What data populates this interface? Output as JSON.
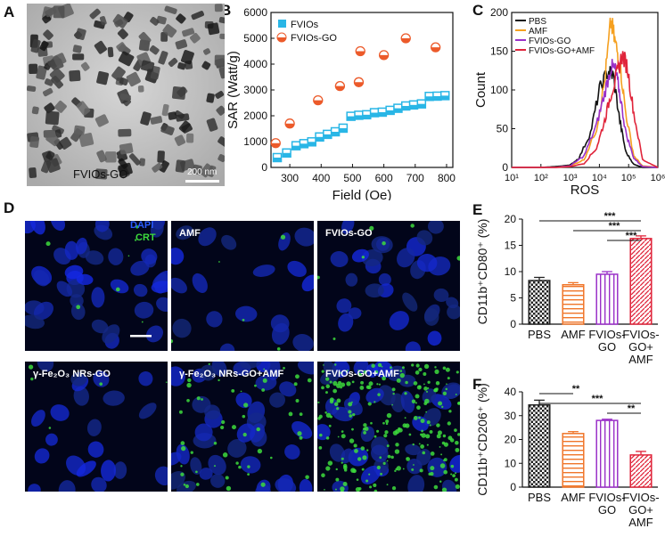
{
  "panels": {
    "A": {
      "letter": "A",
      "caption": "FVIOs-GO",
      "scale_bar": "200 nm"
    },
    "B": {
      "letter": "B"
    },
    "C": {
      "letter": "C"
    },
    "D": {
      "letter": "D",
      "legend": {
        "dapi": "DAPI",
        "crt": "CRT",
        "dapi_color": "#2a5cff",
        "crt_color": "#3ddc3d"
      },
      "cells": [
        {
          "label": "",
          "crt": 0.03,
          "density": 1.0
        },
        {
          "label": "AMF",
          "crt": 0.02,
          "density": 0.45
        },
        {
          "label": "FVIOs-GO",
          "crt": 0.03,
          "density": 0.75
        },
        {
          "label": "γ-Fe₂O₃ NRs-GO",
          "crt": 0.02,
          "density": 0.55
        },
        {
          "label": "γ-Fe₂O₃ NRs-GO+AMF",
          "crt": 0.2,
          "density": 1.0
        },
        {
          "label": "FVIOs-GO+AMF",
          "crt": 0.9,
          "density": 1.0
        }
      ]
    },
    "E": {
      "letter": "E"
    },
    "F": {
      "letter": "F"
    }
  },
  "chart_data": [
    {
      "panel": "B",
      "type": "scatter",
      "xlabel": "Field (Oe)",
      "ylabel": "SAR (Watt/g)",
      "xlim": [
        240,
        820
      ],
      "ylim": [
        0,
        6000
      ],
      "xticks": [
        300,
        400,
        500,
        600,
        700,
        800
      ],
      "yticks": [
        0,
        1000,
        2000,
        3000,
        4000,
        5000,
        6000
      ],
      "legend_position": "top-left",
      "series": [
        {
          "name": "FVIOs",
          "color": "#29b6e6",
          "marker": "square",
          "x": [
            260,
            290,
            320,
            345,
            370,
            395,
            420,
            445,
            470,
            495,
            520,
            545,
            570,
            595,
            620,
            645,
            670,
            695,
            720,
            745,
            770,
            795
          ],
          "y": [
            380,
            560,
            840,
            920,
            990,
            1180,
            1280,
            1380,
            1520,
            1980,
            2020,
            2040,
            2120,
            2140,
            2210,
            2290,
            2380,
            2420,
            2460,
            2750,
            2760,
            2780
          ]
        },
        {
          "name": "FVIOs-GO",
          "color": "#ec5a2a",
          "marker": "circle",
          "x": [
            255,
            300,
            390,
            460,
            520,
            525,
            600,
            670,
            765
          ],
          "y": [
            940,
            1700,
            2600,
            3150,
            3300,
            4500,
            4350,
            5000,
            4650
          ]
        }
      ]
    },
    {
      "panel": "C",
      "type": "line",
      "xlabel": "ROS",
      "ylabel": "Count",
      "x_scale": "log",
      "xlim": [
        10,
        1000000
      ],
      "ylim": [
        0,
        200
      ],
      "xtick_labels": [
        "10¹",
        "10²",
        "10³",
        "10⁴",
        "10⁵",
        "10⁶"
      ],
      "yticks": [
        0,
        50,
        100,
        150,
        200
      ],
      "legend_position": "top-left",
      "series": [
        {
          "name": "PBS",
          "color": "#111111",
          "x": [
            10,
            100,
            300,
            1000,
            2000,
            5000,
            10000,
            20000,
            30000,
            50000,
            80000,
            150000,
            300000,
            1000000
          ],
          "y": [
            0,
            0,
            1,
            3,
            12,
            45,
            100,
            125,
            118,
            60,
            20,
            4,
            0,
            0
          ]
        },
        {
          "name": "AMF",
          "color": "#f5a020",
          "x": [
            10,
            100,
            300,
            1000,
            3000,
            8000,
            15000,
            25000,
            35000,
            50000,
            80000,
            150000,
            300000,
            1000000
          ],
          "y": [
            0,
            0,
            0,
            2,
            10,
            50,
            110,
            188,
            160,
            135,
            70,
            15,
            2,
            0
          ]
        },
        {
          "name": "FVIOs-GO",
          "color": "#9a30c8",
          "x": [
            10,
            100,
            300,
            1000,
            3000,
            8000,
            15000,
            25000,
            35000,
            50000,
            80000,
            150000,
            300000,
            1000000
          ],
          "y": [
            0,
            0,
            0,
            2,
            15,
            55,
            95,
            130,
            125,
            95,
            45,
            12,
            1,
            0
          ]
        },
        {
          "name": "FVIOs-GO+AMF",
          "color": "#e0243a",
          "x": [
            10,
            100,
            300,
            1000,
            3000,
            8000,
            15000,
            25000,
            40000,
            60000,
            90000,
            150000,
            300000,
            1000000
          ],
          "y": [
            0,
            0,
            0,
            1,
            5,
            25,
            60,
            95,
            120,
            145,
            130,
            70,
            10,
            0
          ]
        }
      ]
    },
    {
      "panel": "E",
      "type": "bar",
      "ylabel": "CD11b⁺CD80⁺ (%)",
      "ylim": [
        0,
        20
      ],
      "yticks": [
        0,
        5,
        10,
        15,
        20
      ],
      "categories": [
        "PBS",
        "AMF",
        "FVIOs-\nGO",
        "FVIOs-\nGO+\nAMF"
      ],
      "values": [
        8.3,
        7.5,
        9.5,
        16.3
      ],
      "errors": [
        0.6,
        0.4,
        0.5,
        0.5
      ],
      "colors": [
        "#222222",
        "#f0762a",
        "#9a30c8",
        "#e0243a"
      ],
      "significance": [
        {
          "from": 0,
          "to": 3,
          "label": "***"
        },
        {
          "from": 1,
          "to": 3,
          "label": "***"
        },
        {
          "from": 2,
          "to": 3,
          "label": "***"
        }
      ]
    },
    {
      "panel": "F",
      "type": "bar",
      "ylabel": "CD11b⁺CD206⁺ (%)",
      "ylim": [
        0,
        40
      ],
      "yticks": [
        0,
        10,
        20,
        30,
        40
      ],
      "categories": [
        "PBS",
        "AMF",
        "FVIOs-\nGO",
        "FVIOs-\nGO+\nAMF"
      ],
      "values": [
        34.5,
        22.5,
        28.0,
        13.5
      ],
      "errors": [
        2.0,
        0.8,
        0.5,
        1.5
      ],
      "colors": [
        "#222222",
        "#f0762a",
        "#9a30c8",
        "#e0243a"
      ],
      "significance": [
        {
          "from": 0,
          "to": 1,
          "label": "**"
        },
        {
          "from": 0,
          "to": 3,
          "label": "***"
        },
        {
          "from": 2,
          "to": 3,
          "label": "**"
        }
      ]
    }
  ]
}
